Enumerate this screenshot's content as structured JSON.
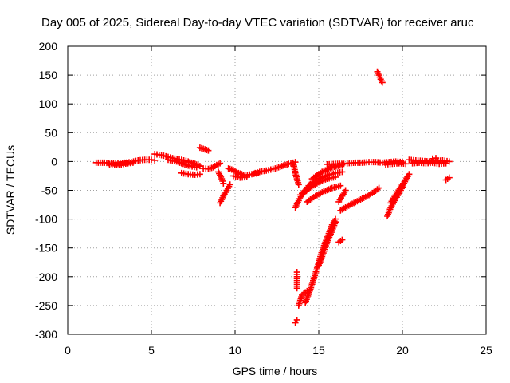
{
  "chart_data": {
    "type": "scatter",
    "title": "Day 005 of 2025, Sidereal Day-to-day VTEC variation (SDTVAR) for receiver aruc",
    "xlabel": "GPS time / hours",
    "ylabel": "SDTVAR / TECUs",
    "xlim": [
      0,
      25
    ],
    "ylim": [
      -300,
      200
    ],
    "xticks": [
      0,
      5,
      10,
      15,
      20,
      25
    ],
    "yticks": [
      -300,
      -250,
      -200,
      -150,
      -100,
      -50,
      0,
      50,
      100,
      150,
      200
    ],
    "xtick_labels": [
      "0",
      "5",
      "10",
      "15",
      "20",
      "25"
    ],
    "ytick_labels": [
      "-300",
      "-250",
      "-200",
      "-150",
      "-100",
      "-50",
      "0",
      "50",
      "100",
      "150",
      "200"
    ],
    "grid": true,
    "marker": "+",
    "series_color": "#ff0000",
    "series": [
      {
        "name": "SDTVAR",
        "segments": [
          [
            [
              1.7,
              -2
            ],
            [
              2.2,
              -2
            ],
            [
              2.6,
              -3
            ],
            [
              3.0,
              -3
            ],
            [
              3.4,
              -2
            ],
            [
              3.8,
              -1
            ],
            [
              4.2,
              2
            ],
            [
              4.6,
              3
            ],
            [
              5.0,
              3
            ],
            [
              5.2,
              2
            ]
          ],
          [
            [
              2.5,
              -5
            ],
            [
              2.8,
              -6
            ],
            [
              3.2,
              -5
            ],
            [
              3.6,
              -3
            ],
            [
              3.9,
              -2
            ]
          ],
          [
            [
              5.2,
              13
            ],
            [
              5.6,
              11
            ],
            [
              6.0,
              8
            ],
            [
              6.4,
              5
            ],
            [
              6.8,
              3
            ],
            [
              7.2,
              0
            ],
            [
              7.6,
              -4
            ],
            [
              7.9,
              -8
            ]
          ],
          [
            [
              6.0,
              3
            ],
            [
              6.5,
              0
            ],
            [
              6.9,
              -4
            ],
            [
              7.3,
              -8
            ],
            [
              7.7,
              -10
            ]
          ],
          [
            [
              6.8,
              -20
            ],
            [
              7.2,
              -22
            ],
            [
              7.6,
              -23
            ],
            [
              7.9,
              -22
            ]
          ],
          [
            [
              7.9,
              24
            ],
            [
              8.2,
              21
            ],
            [
              8.4,
              19
            ]
          ],
          [
            [
              8.1,
              -12
            ],
            [
              8.4,
              -13
            ],
            [
              8.7,
              -10
            ],
            [
              8.9,
              -6
            ],
            [
              9.1,
              -3
            ]
          ],
          [
            [
              9.0,
              -18
            ],
            [
              9.2,
              -30
            ],
            [
              9.3,
              -38
            ]
          ],
          [
            [
              9.1,
              -72
            ],
            [
              9.3,
              -60
            ],
            [
              9.5,
              -50
            ],
            [
              9.7,
              -40
            ]
          ],
          [
            [
              9.6,
              -12
            ],
            [
              9.9,
              -15
            ],
            [
              10.2,
              -20
            ],
            [
              10.6,
              -24
            ],
            [
              11.0,
              -22
            ],
            [
              11.4,
              -20
            ]
          ],
          [
            [
              9.9,
              -25
            ],
            [
              10.3,
              -28
            ],
            [
              10.7,
              -27
            ]
          ],
          [
            [
              11.2,
              -20
            ],
            [
              11.6,
              -17
            ],
            [
              12.0,
              -15
            ],
            [
              12.4,
              -12
            ],
            [
              12.8,
              -8
            ],
            [
              13.2,
              -4
            ],
            [
              13.6,
              -1
            ]
          ],
          [
            [
              13.5,
              -5
            ],
            [
              13.6,
              -20
            ],
            [
              13.7,
              -30
            ],
            [
              13.8,
              -40
            ]
          ],
          [
            [
              13.6,
              -80
            ],
            [
              13.8,
              -68
            ],
            [
              14.0,
              -58
            ],
            [
              14.2,
              -50
            ],
            [
              14.4,
              -42
            ],
            [
              14.6,
              -36
            ]
          ],
          [
            [
              13.9,
              -58
            ],
            [
              14.2,
              -50
            ],
            [
              14.6,
              -38
            ],
            [
              15.0,
              -30
            ],
            [
              15.5,
              -24
            ],
            [
              16.0,
              -20
            ],
            [
              16.4,
              -18
            ]
          ],
          [
            [
              14.1,
              -55
            ],
            [
              14.5,
              -45
            ],
            [
              15.0,
              -36
            ],
            [
              15.5,
              -30
            ],
            [
              16.0,
              -27
            ]
          ],
          [
            [
              14.3,
              -70
            ],
            [
              14.8,
              -60
            ],
            [
              15.3,
              -52
            ],
            [
              15.8,
              -46
            ],
            [
              16.3,
              -42
            ]
          ],
          [
            [
              14.6,
              -30
            ],
            [
              15.2,
              -18
            ],
            [
              15.8,
              -10
            ],
            [
              16.4,
              -6
            ]
          ],
          [
            [
              15.5,
              -5
            ],
            [
              16.0,
              -4
            ],
            [
              16.5,
              -4
            ]
          ],
          [
            [
              13.6,
              -280
            ],
            [
              13.7,
              -275
            ]
          ],
          [
            [
              13.7,
              -220
            ],
            [
              13.7,
              -200
            ],
            [
              13.7,
              -192
            ]
          ],
          [
            [
              13.8,
              -250
            ],
            [
              14.0,
              -232
            ],
            [
              14.3,
              -225
            ]
          ],
          [
            [
              14.2,
              -245
            ],
            [
              14.5,
              -222
            ],
            [
              14.8,
              -195
            ],
            [
              15.0,
              -175
            ],
            [
              15.2,
              -155
            ],
            [
              15.4,
              -140
            ],
            [
              15.6,
              -125
            ],
            [
              15.8,
              -110
            ],
            [
              16.0,
              -100
            ]
          ],
          [
            [
              15.0,
              -180
            ],
            [
              15.2,
              -165
            ],
            [
              15.5,
              -140
            ],
            [
              15.8,
              -120
            ],
            [
              16.0,
              -105
            ]
          ],
          [
            [
              16.2,
              -70
            ],
            [
              16.4,
              -60
            ],
            [
              16.6,
              -50
            ]
          ],
          [
            [
              16.3,
              -85
            ],
            [
              16.7,
              -78
            ],
            [
              17.1,
              -72
            ],
            [
              17.5,
              -66
            ],
            [
              17.9,
              -60
            ],
            [
              18.3,
              -53
            ],
            [
              18.6,
              -46
            ]
          ],
          [
            [
              16.2,
              -140
            ],
            [
              16.4,
              -136
            ]
          ],
          [
            [
              16.7,
              -3
            ],
            [
              17.2,
              -2
            ],
            [
              17.6,
              -2
            ],
            [
              18.0,
              -1
            ],
            [
              18.4,
              -1
            ],
            [
              18.8,
              -2
            ],
            [
              19.2,
              -1
            ],
            [
              19.6,
              0
            ],
            [
              20.0,
              -1
            ]
          ],
          [
            [
              18.5,
              156
            ],
            [
              18.6,
              150
            ],
            [
              18.7,
              143
            ],
            [
              18.8,
              137
            ]
          ],
          [
            [
              19.0,
              -5
            ],
            [
              19.4,
              -4
            ],
            [
              19.8,
              -3
            ],
            [
              20.2,
              -4
            ]
          ],
          [
            [
              19.1,
              -95
            ],
            [
              19.3,
              -80
            ],
            [
              19.6,
              -65
            ],
            [
              19.9,
              -50
            ],
            [
              20.1,
              -38
            ],
            [
              20.3,
              -26
            ]
          ],
          [
            [
              19.3,
              -72
            ],
            [
              19.6,
              -58
            ],
            [
              19.9,
              -44
            ],
            [
              20.2,
              -32
            ],
            [
              20.4,
              -22
            ]
          ],
          [
            [
              20.4,
              3
            ],
            [
              20.8,
              2
            ],
            [
              21.2,
              1
            ],
            [
              21.6,
              0
            ],
            [
              22.0,
              1
            ],
            [
              22.4,
              2
            ],
            [
              22.8,
              0
            ]
          ],
          [
            [
              20.6,
              -3
            ],
            [
              21.0,
              -2
            ],
            [
              21.4,
              -3
            ],
            [
              21.8,
              -2
            ],
            [
              22.2,
              -4
            ],
            [
              22.6,
              -3
            ]
          ],
          [
            [
              21.8,
              5
            ],
            [
              22.0,
              6
            ]
          ],
          [
            [
              22.6,
              -32
            ],
            [
              22.8,
              -28
            ]
          ]
        ]
      }
    ]
  }
}
